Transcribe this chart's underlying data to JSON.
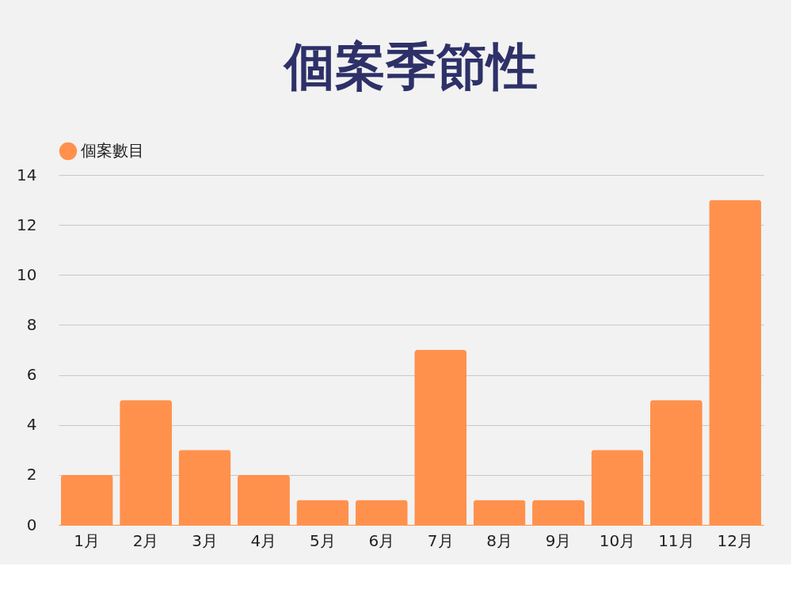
{
  "chart_data": {
    "type": "bar",
    "title": "個案季節性",
    "categories": [
      "1月",
      "2月",
      "3月",
      "4月",
      "5月",
      "6月",
      "7月",
      "8月",
      "9月",
      "10月",
      "11月",
      "12月"
    ],
    "series": [
      {
        "name": "個案數目",
        "color": "#ff914d",
        "values": [
          2,
          5,
          3,
          2,
          1,
          1,
          7,
          1,
          1,
          3,
          5,
          13
        ]
      }
    ],
    "ylim": [
      0,
      14
    ],
    "yticks": [
      0,
      2,
      4,
      6,
      8,
      10,
      12,
      14
    ],
    "grid": "y",
    "legend": "top"
  }
}
